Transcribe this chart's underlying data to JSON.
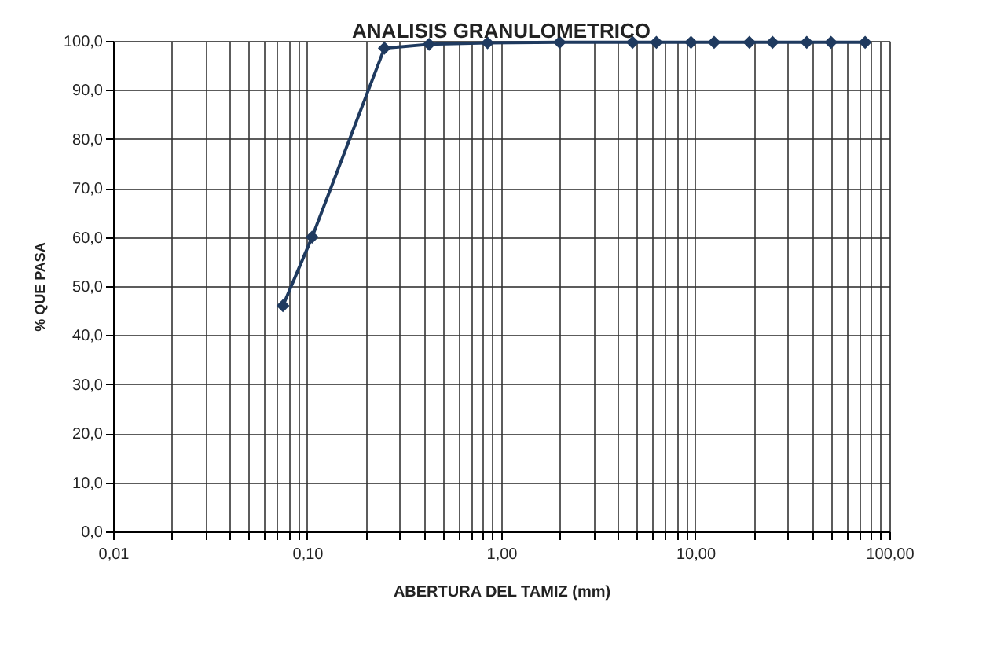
{
  "chart_data": {
    "type": "line",
    "title": "ANALISIS GRANULOMETRICO",
    "xlabel": "ABERTURA DEL TAMIZ (mm)",
    "ylabel": "% QUE PASA",
    "x": [
      0.075,
      0.106,
      0.25,
      0.425,
      0.85,
      2.0,
      4.75,
      6.3,
      9.5,
      12.5,
      19,
      25,
      37.5,
      50,
      75
    ],
    "series": [
      {
        "color": "#1f3a5f",
        "values": [
          46,
          60,
          98.5,
          99.3,
          99.6,
          99.7,
          99.7,
          99.7,
          99.7,
          99.7,
          99.7,
          99.7,
          99.7,
          99.7,
          99.7
        ]
      }
    ],
    "log": "x",
    "xlim": [
      0.01,
      100
    ],
    "ylim": [
      0,
      100
    ],
    "xticks": [
      {
        "value": 0.01,
        "label": "0,01"
      },
      {
        "value": 0.02,
        "label": null
      },
      {
        "value": 0.03,
        "label": null
      },
      {
        "value": 0.04,
        "label": null
      },
      {
        "value": 0.05,
        "label": null
      },
      {
        "value": 0.06,
        "label": null
      },
      {
        "value": 0.07,
        "label": null
      },
      {
        "value": 0.08,
        "label": null
      },
      {
        "value": 0.09,
        "label": null
      },
      {
        "value": 0.1,
        "label": "0,10"
      },
      {
        "value": 0.2,
        "label": null
      },
      {
        "value": 0.3,
        "label": null
      },
      {
        "value": 0.4,
        "label": null
      },
      {
        "value": 0.5,
        "label": null
      },
      {
        "value": 0.6,
        "label": null
      },
      {
        "value": 0.7,
        "label": null
      },
      {
        "value": 0.8,
        "label": null
      },
      {
        "value": 0.9,
        "label": null
      },
      {
        "value": 1,
        "label": "1,00"
      },
      {
        "value": 2,
        "label": null
      },
      {
        "value": 3,
        "label": null
      },
      {
        "value": 4,
        "label": null
      },
      {
        "value": 5,
        "label": null
      },
      {
        "value": 6,
        "label": null
      },
      {
        "value": 7,
        "label": null
      },
      {
        "value": 8,
        "label": null
      },
      {
        "value": 9,
        "label": null
      },
      {
        "value": 10,
        "label": "10,00"
      },
      {
        "value": 20,
        "label": null
      },
      {
        "value": 30,
        "label": null
      },
      {
        "value": 40,
        "label": null
      },
      {
        "value": 50,
        "label": null
      },
      {
        "value": 60,
        "label": null
      },
      {
        "value": 70,
        "label": null
      },
      {
        "value": 80,
        "label": null
      },
      {
        "value": 90,
        "label": null
      },
      {
        "value": 100,
        "label": "100,00"
      }
    ],
    "yticks": [
      {
        "value": 0,
        "label": "0,0"
      },
      {
        "value": 10,
        "label": "10,0"
      },
      {
        "value": 20,
        "label": "20,0"
      },
      {
        "value": 30,
        "label": "30,0"
      },
      {
        "value": 40,
        "label": "40,0"
      },
      {
        "value": 50,
        "label": "50,0"
      },
      {
        "value": 60,
        "label": "60,0"
      },
      {
        "value": 70,
        "label": "70,0"
      },
      {
        "value": 80,
        "label": "80,0"
      },
      {
        "value": 90,
        "label": "90,0"
      },
      {
        "value": 100,
        "label": "100,0"
      }
    ],
    "grid": true,
    "marker": "diamond",
    "line_style": "solid"
  }
}
